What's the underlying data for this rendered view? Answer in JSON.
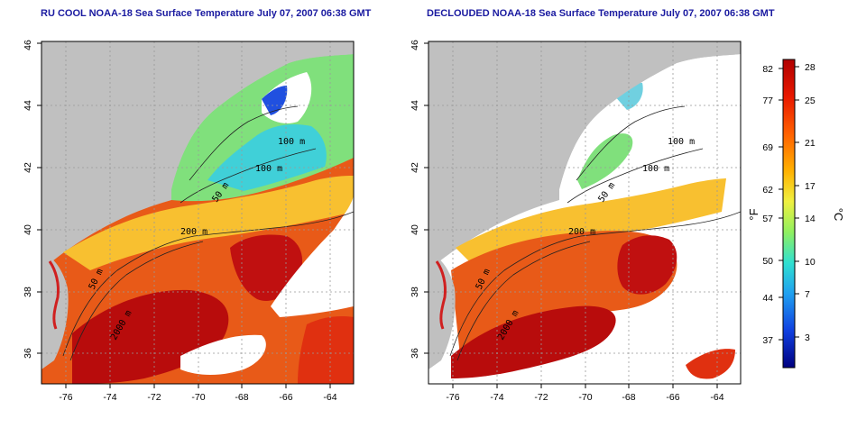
{
  "panels": [
    {
      "id": "ru-cool",
      "title": "RU COOL NOAA-18 Sea Surface Temperature July 07, 2007 06:38 GMT",
      "x_ticks": [
        "-76",
        "-74",
        "-72",
        "-70",
        "-68",
        "-66",
        "-64"
      ],
      "y_ticks": [
        "36",
        "38",
        "40",
        "42",
        "44",
        "46"
      ],
      "contour_labels": [
        "50 m",
        "100 m",
        "100 m",
        "200 m",
        "50 m",
        "2000 m"
      ]
    },
    {
      "id": "declouded",
      "title": "DECLOUDED NOAA-18 Sea Surface Temperature July 07, 2007 06:38 GMT",
      "x_ticks": [
        "-76",
        "-74",
        "-72",
        "-70",
        "-68",
        "-66",
        "-64"
      ],
      "y_ticks": [
        "36",
        "38",
        "40",
        "42",
        "44",
        "46"
      ],
      "contour_labels": [
        "100 m",
        "100 m",
        "50 m",
        "200 m",
        "50 m",
        "2000 m"
      ]
    }
  ],
  "colorbar": {
    "fahrenheit_label": "°F",
    "celsius_label": "°C",
    "fahrenheit_ticks": [
      "82",
      "77",
      "69",
      "62",
      "57",
      "50",
      "44",
      "37"
    ],
    "celsius_ticks": [
      "28",
      "25",
      "21",
      "17",
      "14",
      "10",
      "7",
      "3"
    ],
    "colors": [
      "#b00000",
      "#e81800",
      "#ff6000",
      "#ffb000",
      "#f0f040",
      "#90f060",
      "#30e0d0",
      "#20a0f0",
      "#1040e0",
      "#000080"
    ]
  },
  "map_colors": {
    "land": "#c0c0c0",
    "cloud": "#ffffff",
    "warm": "#e03a10",
    "hot": "#b80c0c",
    "mid": "#f8a020",
    "cool": "#70e090",
    "cold": "#30c0e0"
  }
}
